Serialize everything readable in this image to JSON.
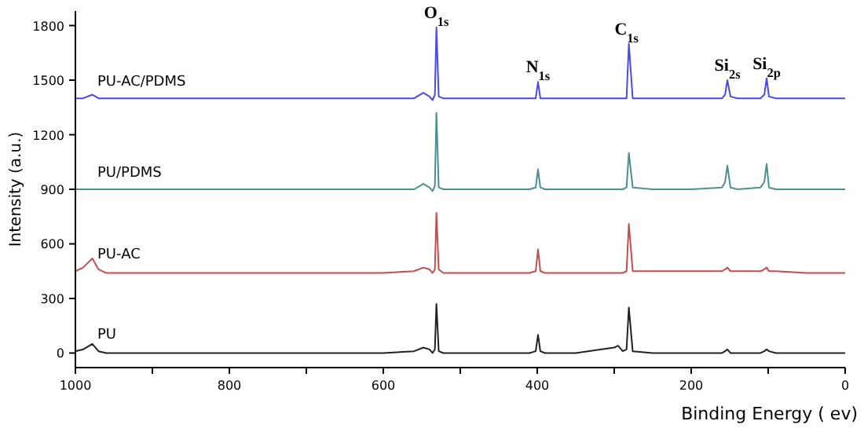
{
  "chart_data": {
    "type": "line",
    "xlabel": "Binding Energy ( ev)",
    "ylabel": "Intensity (a.u.)",
    "xlim": [
      1000,
      0
    ],
    "xticks": [
      1000,
      {
        "value": 900,
        "label": null
      },
      800,
      {
        "value": 700,
        "label": null
      },
      600,
      {
        "value": 500,
        "label": null
      },
      400,
      {
        "value": 300,
        "label": null
      },
      200,
      {
        "value": 100,
        "label": null
      },
      0
    ],
    "ylim": [
      -80,
      1880
    ],
    "yticks": [
      0,
      300,
      600,
      900,
      1200,
      1500,
      1800
    ],
    "grid": false,
    "marker": "none",
    "line_style": "solid",
    "x": [
      1000,
      990,
      978,
      970,
      960,
      900,
      800,
      700,
      600,
      560,
      548,
      540,
      536,
      533,
      531,
      528,
      522,
      500,
      410,
      402,
      399,
      396,
      390,
      350,
      300,
      295,
      289,
      284,
      281,
      276,
      250,
      200,
      160,
      156,
      153,
      149,
      140,
      110,
      105,
      102,
      99,
      90,
      50,
      20,
      0
    ],
    "series": [
      {
        "name": "PU-AC/PDMS",
        "color": "#4a4ae6",
        "values": [
          1400,
          1400,
          1420,
          1400,
          1400,
          1400,
          1400,
          1400,
          1400,
          1400,
          1430,
          1410,
          1390,
          1420,
          1790,
          1410,
          1400,
          1400,
          1400,
          1400,
          1490,
          1400,
          1400,
          1400,
          1400,
          1400,
          1400,
          1400,
          1700,
          1400,
          1400,
          1400,
          1400,
          1420,
          1500,
          1410,
          1400,
          1400,
          1420,
          1510,
          1410,
          1400,
          1400,
          1400,
          1400
        ]
      },
      {
        "name": "PU/PDMS",
        "color": "#4b8f92",
        "values": [
          900,
          900,
          900,
          900,
          900,
          900,
          900,
          900,
          900,
          900,
          930,
          910,
          890,
          920,
          1320,
          910,
          900,
          900,
          900,
          910,
          1010,
          910,
          900,
          900,
          900,
          900,
          900,
          910,
          1100,
          910,
          900,
          900,
          910,
          940,
          1030,
          910,
          900,
          910,
          940,
          1040,
          910,
          900,
          900,
          900,
          900
        ]
      },
      {
        "name": "PU-AC",
        "color": "#c0504d",
        "values": [
          450,
          470,
          520,
          460,
          440,
          440,
          440,
          440,
          440,
          450,
          470,
          460,
          440,
          460,
          770,
          460,
          440,
          440,
          440,
          450,
          570,
          450,
          440,
          440,
          440,
          440,
          440,
          450,
          710,
          450,
          450,
          450,
          450,
          460,
          470,
          450,
          450,
          450,
          460,
          470,
          450,
          450,
          440,
          440,
          440
        ]
      },
      {
        "name": "PU",
        "color": "#222222",
        "values": [
          10,
          20,
          50,
          10,
          0,
          0,
          0,
          0,
          0,
          10,
          30,
          20,
          0,
          20,
          270,
          10,
          0,
          0,
          0,
          10,
          100,
          10,
          0,
          0,
          30,
          40,
          10,
          20,
          250,
          10,
          0,
          0,
          0,
          10,
          20,
          0,
          0,
          0,
          10,
          20,
          10,
          0,
          0,
          0,
          0
        ]
      }
    ],
    "annotations": [
      {
        "text": "O$_{1s}$",
        "x": 531,
        "y": 1790
      },
      {
        "text": "N$_{1s}$",
        "x": 399,
        "y": 1490
      },
      {
        "text": "C$_{1s}$",
        "x": 284,
        "y": 1700
      },
      {
        "text": "Si$_{2s}$",
        "x": 153,
        "y": 1500
      },
      {
        "text": "Si$_{2p}$",
        "x": 102,
        "y": 1510
      }
    ]
  }
}
